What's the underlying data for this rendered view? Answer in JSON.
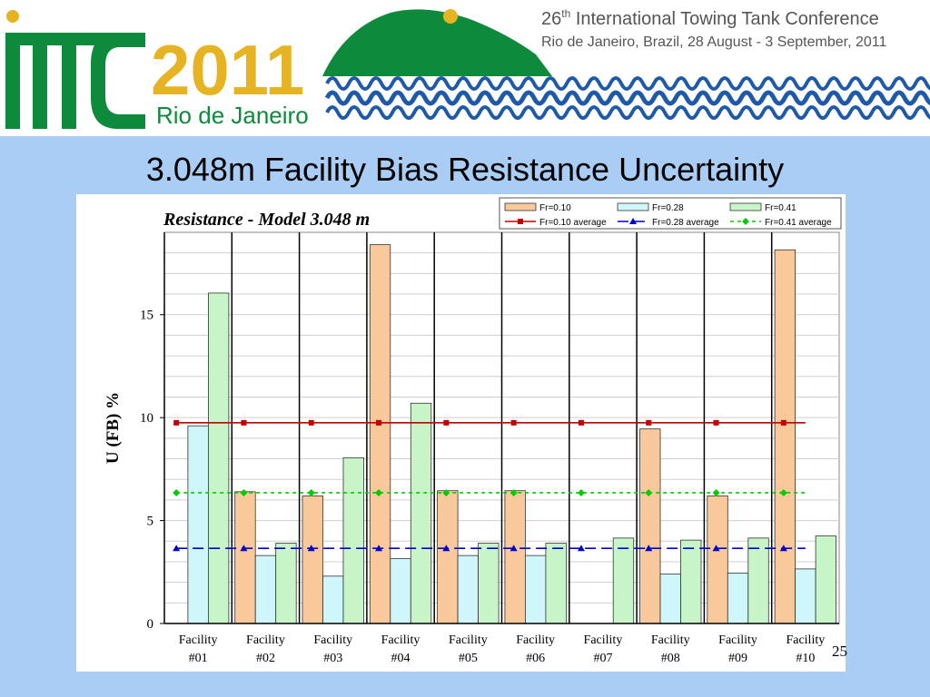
{
  "slide": {
    "title": "3.048m Facility Bias Resistance Uncertainty",
    "page_number": "25"
  },
  "banner": {
    "logo_letters": "ITTC",
    "logo_year": "2011",
    "logo_city": "Rio de Janeiro",
    "conference_line1_prefix": "26",
    "conference_line1_sup": "th",
    "conference_line1_rest": " International Towing Tank Conference",
    "conference_line2": "Rio de Janeiro, Brazil, 28 August - 3 September, 2011",
    "colors": {
      "green": "#0e8a3c",
      "gold": "#e6b422",
      "wave_blue": "#1f5aa8"
    }
  },
  "chart_data": {
    "type": "bar",
    "title": "Resistance - Model 3.048 m",
    "ylabel": "U (FB) %",
    "xlabel": "",
    "ylim": [
      0,
      19
    ],
    "yticks": [
      0,
      5,
      10,
      15
    ],
    "grid": true,
    "legend_position": "top-right",
    "categories": [
      {
        "line1": "Facility",
        "line2": "#01"
      },
      {
        "line1": "Facility",
        "line2": "#02"
      },
      {
        "line1": "Facility",
        "line2": "#03"
      },
      {
        "line1": "Facility",
        "line2": "#04"
      },
      {
        "line1": "Facility",
        "line2": "#05"
      },
      {
        "line1": "Facility",
        "line2": "#06"
      },
      {
        "line1": "Facility",
        "line2": "#07"
      },
      {
        "line1": "Facility",
        "line2": "#08"
      },
      {
        "line1": "Facility",
        "line2": "#09"
      },
      {
        "line1": "Facility",
        "line2": "#10"
      }
    ],
    "series": [
      {
        "name": "Fr=0.10",
        "color": "#f9c89b",
        "values": [
          null,
          6.4,
          6.2,
          18.4,
          6.45,
          6.45,
          null,
          9.45,
          6.2,
          18.15
        ]
      },
      {
        "name": "Fr=0.28",
        "color": "#cff6fb",
        "values": [
          9.6,
          3.3,
          2.3,
          3.15,
          3.3,
          3.3,
          null,
          2.4,
          2.45,
          2.65
        ]
      },
      {
        "name": "Fr=0.41",
        "color": "#c8f5c8",
        "values": [
          16.05,
          3.9,
          8.05,
          10.7,
          3.9,
          3.9,
          4.15,
          4.05,
          4.15,
          4.25
        ]
      }
    ],
    "averages": [
      {
        "name": "Fr=0.10 average",
        "value": 9.75,
        "color": "#c00000",
        "dash": "solid",
        "marker": "square"
      },
      {
        "name": "Fr=0.28 average",
        "value": 3.65,
        "color": "#0000cc",
        "dash": "dash",
        "marker": "triangle"
      },
      {
        "name": "Fr=0.41 average",
        "value": 6.35,
        "color": "#00cc00",
        "dash": "dot",
        "marker": "diamond"
      }
    ]
  }
}
